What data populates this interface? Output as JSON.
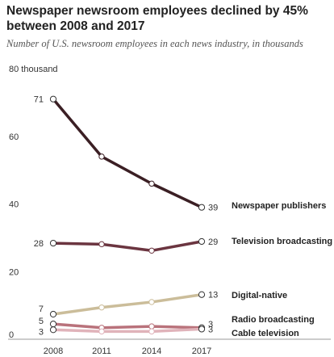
{
  "chart_data": {
    "type": "line",
    "title": "Newspaper newsroom employees declined by 45% between 2008 and 2017",
    "subtitle": "Number of U.S. newsroom employees in each news industry, in thousands",
    "x": [
      "2008",
      "2011",
      "2014",
      "2017"
    ],
    "xlabel": "",
    "ylabel": "",
    "ylim": [
      0,
      80
    ],
    "yticks": [
      0,
      20,
      40,
      60,
      80
    ],
    "yticklabels": [
      "0",
      "20",
      "40",
      "60",
      "80 thousand"
    ],
    "grid": false,
    "series": [
      {
        "name": "Newspaper publishers",
        "values": [
          71,
          54,
          46,
          39
        ],
        "color": "#3b1f24",
        "start_label": "71",
        "end_label": "39"
      },
      {
        "name": "Television broadcasting",
        "values": [
          28.4,
          28.1,
          26.2,
          28.9
        ],
        "color": "#6b3540",
        "start_label": "28",
        "end_label": "29"
      },
      {
        "name": "Digital-native",
        "values": [
          7.4,
          9.4,
          11.0,
          13.2
        ],
        "color": "#cbbd9a",
        "start_label": "7",
        "end_label": "13"
      },
      {
        "name": "Radio broadcasting",
        "values": [
          4.5,
          3.4,
          3.8,
          3.4
        ],
        "color": "#b9727b",
        "start_label": "5",
        "end_label": "3"
      },
      {
        "name": "Cable television",
        "values": [
          2.8,
          2.3,
          2.3,
          3.0
        ],
        "color": "#e0b3ba",
        "start_label": "3",
        "end_label": "3"
      }
    ]
  }
}
